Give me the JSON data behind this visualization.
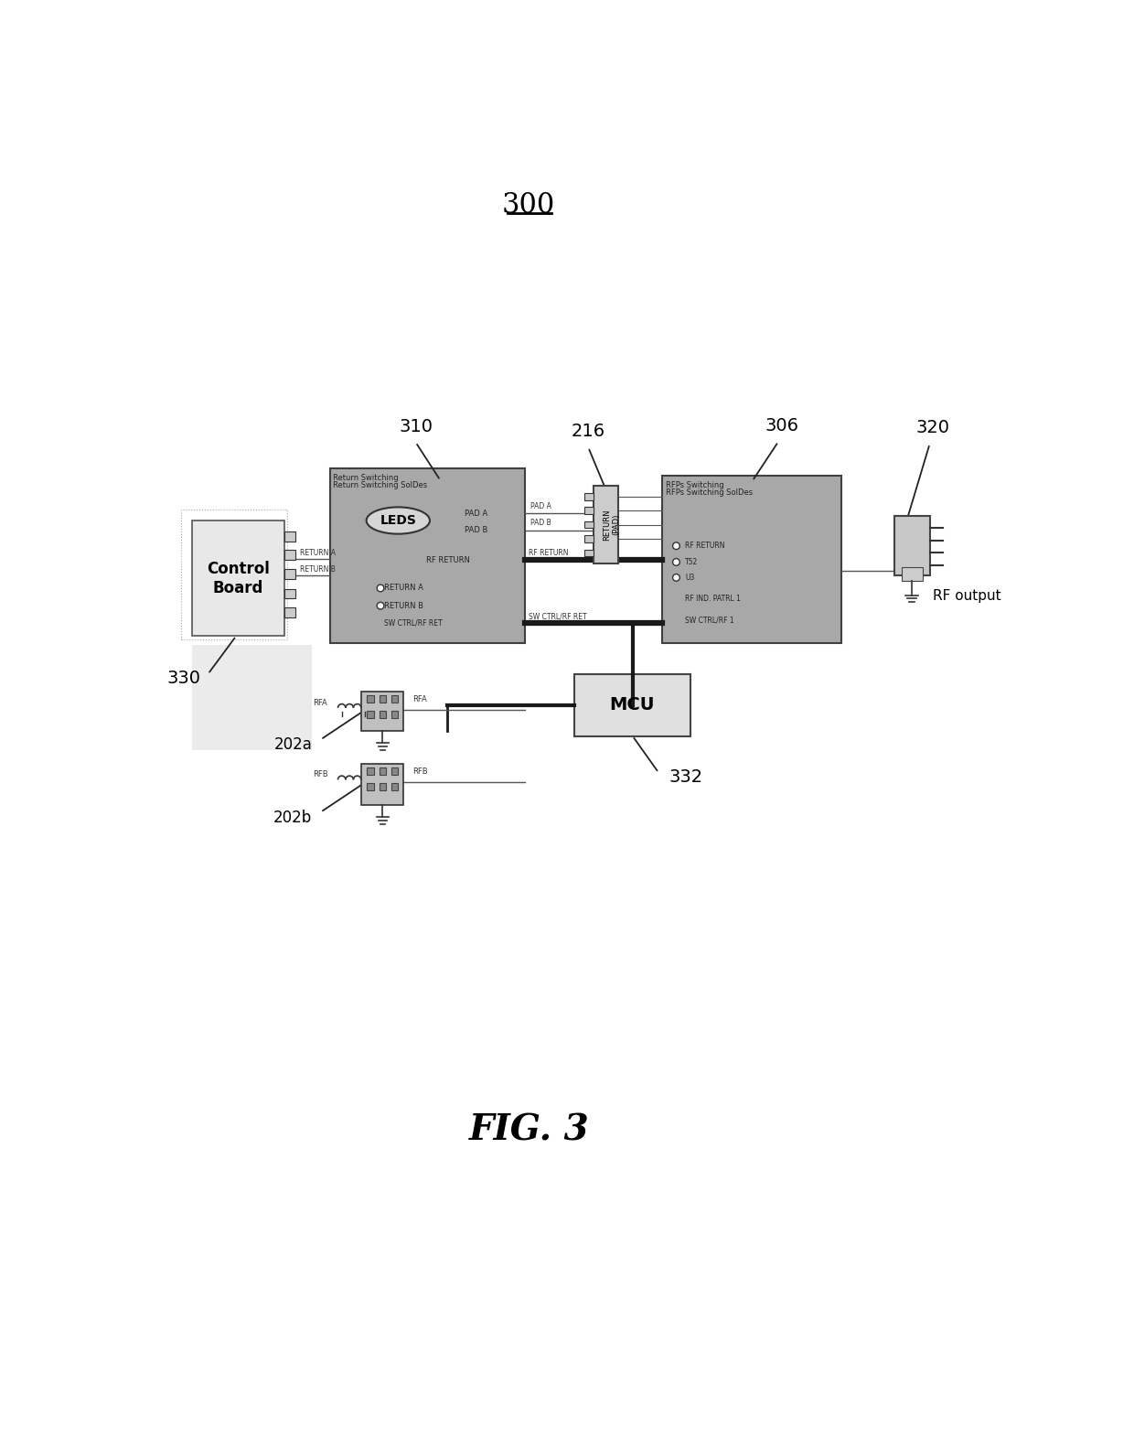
{
  "title": "300",
  "fig_label": "FIG. 3",
  "bg_color": "#ffffff",
  "labels": {
    "control_board": "Control\nBoard",
    "leds": "LEDS",
    "mcu": "MCU",
    "rf_output": "RF output",
    "return_pad": "RETURN\n(PAD)",
    "label_310": "310",
    "label_216": "216",
    "label_306": "306",
    "label_320": "320",
    "label_330": "330",
    "label_332": "332",
    "label_202a": "202a",
    "label_202b": "202b",
    "box310_title1": "Return Switching",
    "box310_title2": "Return Switching SolDes",
    "box306_title1": "RFPs Switching",
    "box306_title2": "RFPs Switching SolDes"
  },
  "colors": {
    "box_fill": "#a8a8a8",
    "box_stroke": "#404040",
    "white": "#ffffff",
    "light_gray": "#e0e0e0",
    "mid_gray": "#c0c0c0",
    "dark": "#1a1a1a",
    "medium": "#555555",
    "annotation": "#333333"
  }
}
